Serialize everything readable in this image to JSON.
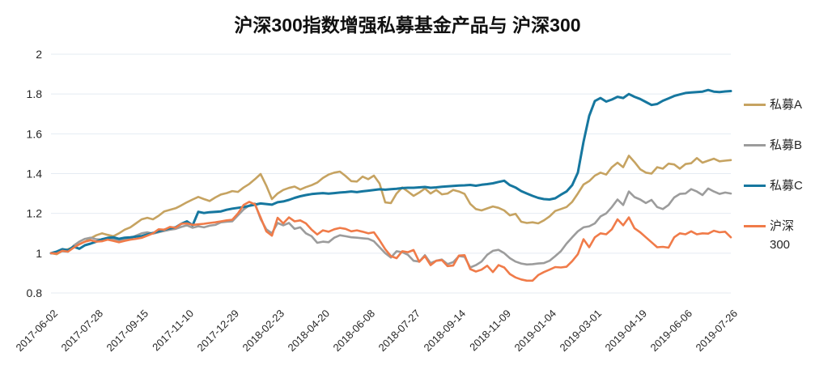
{
  "chart_data": {
    "type": "line",
    "title": "沪深300指数增强私募基金产品与 沪深300",
    "x_tick_labels": [
      "2017-06-02",
      "2017-07-28",
      "2017-09-15",
      "2017-11-10",
      "2017-12-29",
      "2018-02-23",
      "2018-04-20",
      "2018-06-08",
      "2018-07-27",
      "2018-09-14",
      "2018-11-09",
      "2019-01-04",
      "2019-03-01",
      "2019-04-19",
      "2019-06-06",
      "2019-07-26"
    ],
    "x_label_every": 8,
    "n_points": 121,
    "ylim": [
      0.8,
      2.0
    ],
    "yticks": [
      2,
      1.8,
      1.6,
      1.4,
      1.2,
      1,
      0.8
    ],
    "ytick_labels": [
      "2",
      "1.8",
      "1.6",
      "1.4",
      "1.2",
      "1",
      "0.8"
    ],
    "grid": "horizontal",
    "grid_color": "#E5EBF2",
    "text_color": "#262626",
    "legend_position": "right",
    "legend_labels": [
      [
        "私募A"
      ],
      [
        "私募B"
      ],
      [
        "私募C"
      ],
      [
        "沪深",
        "300"
      ]
    ],
    "series": [
      {
        "name": "私募A",
        "color": "#C6A361",
        "width": 2.6,
        "values": [
          1.0,
          0.995,
          1.012,
          1.02,
          1.03,
          1.045,
          1.058,
          1.075,
          1.09,
          1.1,
          1.092,
          1.085,
          1.1,
          1.118,
          1.13,
          1.15,
          1.17,
          1.178,
          1.17,
          1.188,
          1.21,
          1.218,
          1.226,
          1.24,
          1.256,
          1.27,
          1.283,
          1.272,
          1.262,
          1.28,
          1.295,
          1.302,
          1.312,
          1.308,
          1.33,
          1.348,
          1.372,
          1.398,
          1.34,
          1.272,
          1.3,
          1.318,
          1.328,
          1.335,
          1.32,
          1.332,
          1.342,
          1.355,
          1.378,
          1.395,
          1.405,
          1.41,
          1.388,
          1.362,
          1.36,
          1.385,
          1.372,
          1.39,
          1.35,
          1.255,
          1.252,
          1.3,
          1.33,
          1.31,
          1.288,
          1.305,
          1.325,
          1.3,
          1.318,
          1.296,
          1.3,
          1.318,
          1.31,
          1.298,
          1.248,
          1.222,
          1.215,
          1.225,
          1.235,
          1.228,
          1.215,
          1.19,
          1.198,
          1.158,
          1.152,
          1.155,
          1.15,
          1.165,
          1.185,
          1.212,
          1.222,
          1.232,
          1.258,
          1.3,
          1.345,
          1.362,
          1.39,
          1.405,
          1.395,
          1.432,
          1.455,
          1.432,
          1.49,
          1.458,
          1.422,
          1.405,
          1.4,
          1.432,
          1.425,
          1.45,
          1.446,
          1.425,
          1.448,
          1.452,
          1.478,
          1.455,
          1.465,
          1.475,
          1.462,
          1.465,
          1.468
        ]
      },
      {
        "name": "私募B",
        "color": "#9C9C9C",
        "width": 2.6,
        "values": [
          1.0,
          1.002,
          1.01,
          1.008,
          1.038,
          1.058,
          1.072,
          1.078,
          1.07,
          1.068,
          1.075,
          1.07,
          1.062,
          1.07,
          1.075,
          1.088,
          1.1,
          1.105,
          1.098,
          1.105,
          1.112,
          1.118,
          1.122,
          1.132,
          1.14,
          1.128,
          1.135,
          1.13,
          1.138,
          1.142,
          1.155,
          1.158,
          1.16,
          1.19,
          1.22,
          1.24,
          1.25,
          1.172,
          1.12,
          1.1,
          1.152,
          1.14,
          1.152,
          1.122,
          1.13,
          1.1,
          1.085,
          1.052,
          1.058,
          1.055,
          1.078,
          1.09,
          1.085,
          1.08,
          1.078,
          1.075,
          1.072,
          1.06,
          1.03,
          1.0,
          0.978,
          1.01,
          1.005,
          0.992,
          0.962,
          0.958,
          0.99,
          0.95,
          0.962,
          0.968,
          0.945,
          0.955,
          0.985,
          0.982,
          0.928,
          0.94,
          0.958,
          0.992,
          1.012,
          1.017,
          1.0,
          0.975,
          0.958,
          0.948,
          0.943,
          0.945,
          0.948,
          0.95,
          0.962,
          0.985,
          1.01,
          1.048,
          1.08,
          1.11,
          1.13,
          1.135,
          1.15,
          1.185,
          1.2,
          1.232,
          1.27,
          1.242,
          1.31,
          1.282,
          1.27,
          1.252,
          1.268,
          1.232,
          1.222,
          1.242,
          1.28,
          1.298,
          1.3,
          1.322,
          1.31,
          1.292,
          1.325,
          1.31,
          1.298,
          1.305,
          1.3
        ]
      },
      {
        "name": "私募C",
        "color": "#16779F",
        "width": 3,
        "values": [
          1.0,
          1.008,
          1.02,
          1.015,
          1.033,
          1.022,
          1.04,
          1.048,
          1.058,
          1.07,
          1.077,
          1.08,
          1.072,
          1.078,
          1.08,
          1.083,
          1.086,
          1.094,
          1.102,
          1.11,
          1.118,
          1.125,
          1.13,
          1.148,
          1.16,
          1.14,
          1.208,
          1.202,
          1.206,
          1.208,
          1.21,
          1.218,
          1.224,
          1.228,
          1.232,
          1.238,
          1.244,
          1.25,
          1.247,
          1.244,
          1.256,
          1.26,
          1.268,
          1.278,
          1.286,
          1.292,
          1.297,
          1.3,
          1.302,
          1.299,
          1.302,
          1.305,
          1.307,
          1.31,
          1.307,
          1.311,
          1.314,
          1.318,
          1.321,
          1.319,
          1.322,
          1.324,
          1.327,
          1.329,
          1.329,
          1.331,
          1.333,
          1.329,
          1.331,
          1.334,
          1.336,
          1.338,
          1.34,
          1.341,
          1.343,
          1.339,
          1.344,
          1.347,
          1.351,
          1.358,
          1.364,
          1.342,
          1.33,
          1.312,
          1.3,
          1.288,
          1.278,
          1.272,
          1.27,
          1.276,
          1.294,
          1.31,
          1.342,
          1.405,
          1.56,
          1.69,
          1.765,
          1.78,
          1.762,
          1.772,
          1.786,
          1.78,
          1.8,
          1.786,
          1.775,
          1.76,
          1.745,
          1.75,
          1.766,
          1.778,
          1.79,
          1.798,
          1.805,
          1.808,
          1.81,
          1.812,
          1.82,
          1.812,
          1.81,
          1.813,
          1.815
        ]
      },
      {
        "name": "沪深300",
        "color": "#F07B49",
        "width": 2.6,
        "values": [
          1.0,
          0.998,
          1.012,
          1.008,
          1.028,
          1.045,
          1.058,
          1.065,
          1.058,
          1.06,
          1.068,
          1.062,
          1.055,
          1.062,
          1.068,
          1.072,
          1.077,
          1.088,
          1.1,
          1.12,
          1.118,
          1.132,
          1.128,
          1.148,
          1.15,
          1.142,
          1.145,
          1.148,
          1.152,
          1.155,
          1.16,
          1.165,
          1.168,
          1.2,
          1.242,
          1.258,
          1.245,
          1.18,
          1.11,
          1.088,
          1.178,
          1.15,
          1.18,
          1.16,
          1.165,
          1.15,
          1.118,
          1.094,
          1.115,
          1.108,
          1.12,
          1.127,
          1.122,
          1.11,
          1.115,
          1.108,
          1.1,
          1.105,
          1.065,
          1.02,
          0.985,
          0.975,
          1.01,
          1.005,
          1.016,
          0.957,
          0.985,
          0.94,
          0.962,
          0.965,
          0.935,
          0.938,
          0.988,
          0.99,
          0.92,
          0.908,
          0.917,
          0.937,
          0.905,
          0.94,
          0.928,
          0.895,
          0.878,
          0.868,
          0.862,
          0.862,
          0.89,
          0.905,
          0.917,
          0.93,
          0.928,
          0.932,
          0.96,
          0.995,
          1.07,
          1.03,
          1.08,
          1.1,
          1.095,
          1.12,
          1.17,
          1.14,
          1.18,
          1.125,
          1.105,
          1.08,
          1.055,
          1.03,
          1.032,
          1.028,
          1.08,
          1.1,
          1.095,
          1.11,
          1.095,
          1.1,
          1.098,
          1.113,
          1.105,
          1.108,
          1.08
        ]
      }
    ]
  }
}
